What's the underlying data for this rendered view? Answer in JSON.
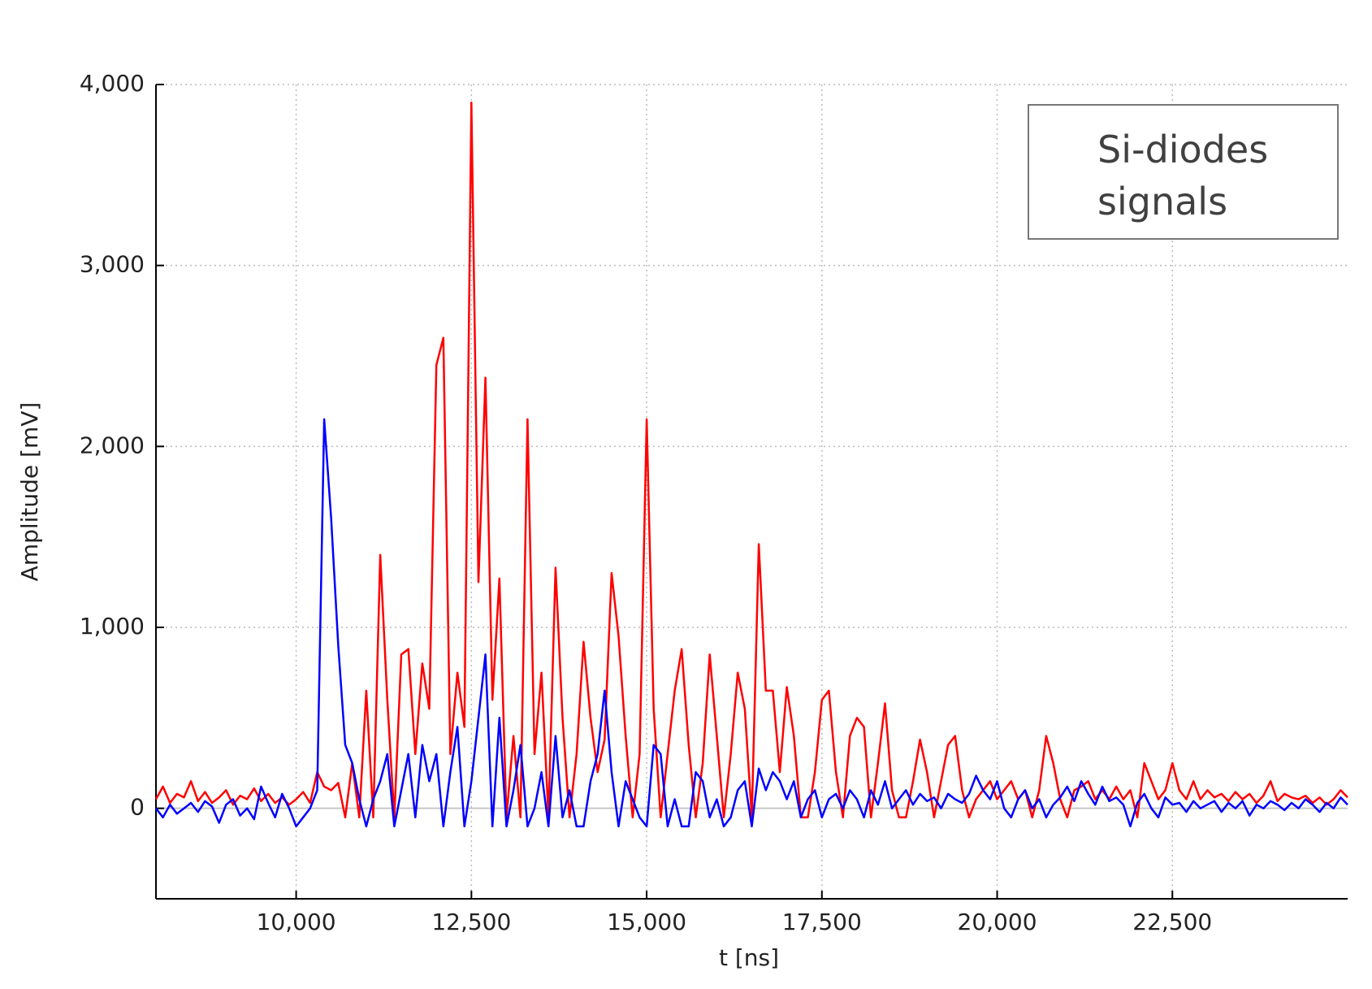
{
  "chart_data": {
    "type": "line",
    "annotation": "Si-diodes signals",
    "xlabel": "t [ns]",
    "ylabel": "Amplitude [mV]",
    "xlim": [
      8000,
      25000
    ],
    "ylim": [
      -500,
      4000
    ],
    "xticks": [
      {
        "value": 10000,
        "label": "10,000"
      },
      {
        "value": 12500,
        "label": "12,500"
      },
      {
        "value": 15000,
        "label": "15,000"
      },
      {
        "value": 17500,
        "label": "17,500"
      },
      {
        "value": 20000,
        "label": "20,000"
      },
      {
        "value": 22500,
        "label": "22,500"
      }
    ],
    "yticks": [
      0,
      {
        "value": 1000,
        "label": "1,000"
      },
      {
        "value": 2000,
        "label": "2,000"
      },
      {
        "value": 3000,
        "label": "3,000"
      },
      {
        "value": 4000,
        "label": "4,000"
      }
    ],
    "grid": true,
    "x": [
      8000,
      8100,
      8200,
      8300,
      8400,
      8500,
      8600,
      8700,
      8800,
      8900,
      9000,
      9100,
      9200,
      9300,
      9400,
      9500,
      9600,
      9700,
      9800,
      9900,
      10000,
      10100,
      10200,
      10300,
      10400,
      10500,
      10600,
      10700,
      10800,
      10900,
      11000,
      11100,
      11200,
      11300,
      11400,
      11500,
      11600,
      11700,
      11800,
      11900,
      12000,
      12100,
      12200,
      12300,
      12400,
      12500,
      12600,
      12700,
      12800,
      12900,
      13000,
      13100,
      13200,
      13300,
      13400,
      13500,
      13600,
      13700,
      13800,
      13900,
      14000,
      14100,
      14200,
      14300,
      14400,
      14500,
      14600,
      14700,
      14800,
      14900,
      15000,
      15100,
      15200,
      15300,
      15400,
      15500,
      15600,
      15700,
      15800,
      15900,
      16000,
      16100,
      16200,
      16300,
      16400,
      16500,
      16600,
      16700,
      16800,
      16900,
      17000,
      17100,
      17200,
      17300,
      17400,
      17500,
      17600,
      17700,
      17800,
      17900,
      18000,
      18100,
      18200,
      18300,
      18400,
      18500,
      18600,
      18700,
      18800,
      18900,
      19000,
      19100,
      19200,
      19300,
      19400,
      19500,
      19600,
      19700,
      19800,
      19900,
      20000,
      20100,
      20200,
      20300,
      20400,
      20500,
      20600,
      20700,
      20800,
      20900,
      21000,
      21100,
      21200,
      21300,
      21400,
      21500,
      21600,
      21700,
      21800,
      21900,
      22000,
      22100,
      22200,
      22300,
      22400,
      22500,
      22600,
      22700,
      22800,
      22900,
      23000,
      23100,
      23200,
      23300,
      23400,
      23500,
      23600,
      23700,
      23800,
      23900,
      24000,
      24100,
      24200,
      24300,
      24400,
      24500,
      24600,
      24700,
      24800,
      24900,
      25000
    ],
    "series": [
      {
        "color": "#ff0000",
        "values": [
          50,
          120,
          30,
          80,
          60,
          150,
          40,
          90,
          30,
          60,
          100,
          20,
          70,
          50,
          110,
          40,
          80,
          30,
          60,
          20,
          50,
          90,
          30,
          200,
          120,
          100,
          140,
          -50,
          250,
          -50,
          650,
          -50,
          1400,
          600,
          -50,
          850,
          880,
          300,
          800,
          550,
          2450,
          2600,
          300,
          750,
          450,
          3900,
          1250,
          2380,
          600,
          1270,
          -50,
          400,
          -50,
          2150,
          300,
          750,
          -50,
          1330,
          500,
          -50,
          300,
          920,
          500,
          200,
          380,
          1300,
          950,
          400,
          -50,
          300,
          2150,
          550,
          -50,
          300,
          650,
          880,
          350,
          -50,
          250,
          850,
          400,
          -50,
          300,
          750,
          550,
          -50,
          1460,
          650,
          650,
          200,
          670,
          400,
          -50,
          -50,
          200,
          600,
          650,
          200,
          -50,
          400,
          500,
          450,
          -50,
          250,
          580,
          100,
          -50,
          -50,
          150,
          380,
          200,
          -50,
          150,
          350,
          400,
          100,
          -50,
          50,
          100,
          150,
          50,
          100,
          150,
          50,
          100,
          -50,
          100,
          400,
          250,
          50,
          -50,
          100,
          120,
          150,
          50,
          100,
          50,
          120,
          50,
          100,
          -50,
          250,
          150,
          50,
          100,
          250,
          100,
          50,
          150,
          50,
          100,
          60,
          80,
          40,
          90,
          50,
          80,
          30,
          70,
          150,
          40,
          80,
          60,
          50,
          70,
          30,
          60,
          20,
          50,
          100,
          60
        ]
      },
      {
        "color": "#0000ff",
        "values": [
          0,
          -50,
          20,
          -30,
          0,
          30,
          -20,
          40,
          10,
          -80,
          20,
          50,
          -40,
          0,
          -60,
          120,
          30,
          -50,
          80,
          0,
          -100,
          -50,
          0,
          100,
          2150,
          1600,
          900,
          350,
          250,
          50,
          -100,
          50,
          150,
          300,
          -100,
          100,
          300,
          -50,
          350,
          150,
          300,
          -100,
          200,
          450,
          -100,
          150,
          500,
          850,
          -100,
          500,
          -100,
          100,
          350,
          -100,
          0,
          200,
          -100,
          400,
          -50,
          100,
          -100,
          -100,
          150,
          300,
          650,
          200,
          -100,
          150,
          50,
          -50,
          -100,
          350,
          300,
          -100,
          50,
          -100,
          -100,
          200,
          150,
          -50,
          50,
          -100,
          -50,
          100,
          150,
          -100,
          220,
          100,
          200,
          150,
          50,
          150,
          -50,
          50,
          100,
          -50,
          50,
          80,
          0,
          100,
          50,
          -50,
          100,
          20,
          150,
          0,
          50,
          100,
          20,
          80,
          40,
          60,
          0,
          80,
          50,
          30,
          80,
          180,
          100,
          50,
          150,
          0,
          -50,
          50,
          100,
          0,
          50,
          -50,
          20,
          60,
          120,
          40,
          150,
          80,
          20,
          120,
          40,
          60,
          20,
          -100,
          30,
          80,
          0,
          -50,
          60,
          20,
          30,
          -20,
          40,
          0,
          20,
          40,
          -20,
          30,
          0,
          40,
          -40,
          20,
          0,
          40,
          20,
          -10,
          30,
          0,
          50,
          20,
          -20,
          30,
          0,
          60,
          20
        ]
      }
    ]
  }
}
